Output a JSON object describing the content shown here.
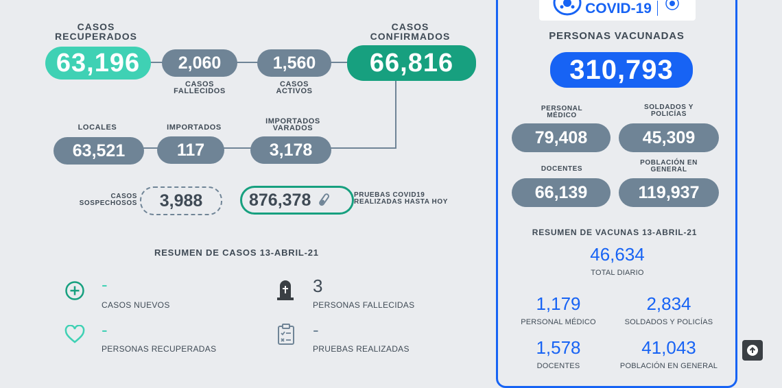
{
  "top": {
    "recovered": {
      "label1": "CASOS",
      "label2": "RECUPERADOS",
      "value": "63,196"
    },
    "deaths": {
      "value": "2,060",
      "label1": "CASOS",
      "label2": "FALLECIDOS"
    },
    "active": {
      "value": "1,560",
      "label1": "CASOS",
      "label2": "ACTIVOS"
    },
    "confirmed": {
      "label1": "CASOS",
      "label2": "CONFIRMADOS",
      "value": "66,816"
    }
  },
  "mid": {
    "local": {
      "label": "LOCALES",
      "value": "63,521"
    },
    "imported": {
      "label": "IMPORTADOS",
      "value": "117"
    },
    "stranded": {
      "label1": "IMPORTADOS",
      "label2": "VARADOS",
      "value": "3,178"
    }
  },
  "suspect": {
    "label1": "CASOS",
    "label2": "SOSPECHOSOS",
    "value": "3,988"
  },
  "tests": {
    "value": "876,378",
    "label1": "PRUEBAS COVID19",
    "label2": "REALIZADAS HASTA HOY"
  },
  "summary": {
    "title": "RESUMEN DE CASOS 13-ABRIL-21",
    "new_cases": {
      "value": "-",
      "label": "CASOS NUEVOS"
    },
    "deceased": {
      "value": "3",
      "label": "PERSONAS FALLECIDAS"
    },
    "recovered": {
      "value": "-",
      "label": "PERSONAS RECUPERADAS"
    },
    "tests_done": {
      "value": "-",
      "label": "PRUEBAS REALIZADAS"
    }
  },
  "vaccine": {
    "logo_text": "COVID-19",
    "title": "PERSONAS VACUNADAS",
    "total": "310,793",
    "groups": [
      {
        "label1": "PERSONAL",
        "label2": "MÉDICO",
        "value": "79,408"
      },
      {
        "label1": "SOLDADOS Y",
        "label2": "POLICÍAS",
        "value": "45,309"
      },
      {
        "label1": "DOCENTES",
        "label2": "",
        "value": "66,139"
      },
      {
        "label1": "POBLACIÓN EN",
        "label2": "GENERAL",
        "value": "119,937"
      }
    ],
    "summary_title": "RESUMEN DE VACUNAS 13-ABRIL-21",
    "daily": {
      "value": "46,634",
      "label": "TOTAL DIARIO"
    },
    "daily_groups": [
      {
        "value": "1,179",
        "label": "PERSONAL MÉDICO"
      },
      {
        "value": "2,834",
        "label": "SOLDADOS Y POLICÍAS"
      },
      {
        "value": "1,578",
        "label": "DOCENTES"
      },
      {
        "value": "41,043",
        "label": "POBLACIÓN EN GENERAL"
      }
    ]
  },
  "colors": {
    "teal": "#3fd1b4",
    "green": "#17a07f",
    "slate": "#6f8496",
    "blue": "#1763f4"
  },
  "icons": [
    "plus-circle-icon",
    "tombstone-icon",
    "heart-icon",
    "clipboard-icon",
    "test-tube-icon",
    "arrow-up-icon"
  ]
}
